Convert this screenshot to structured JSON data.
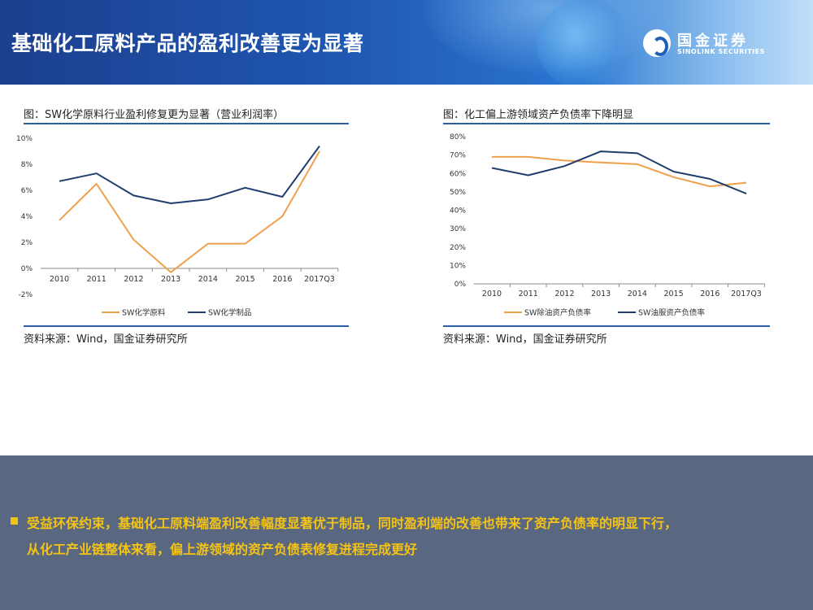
{
  "header": {
    "title": "基础化工原料产品的盈利改善更为显著",
    "logo_cn": "国金证券",
    "logo_en": "SINOLINK SECURITIES"
  },
  "left_panel": {
    "caption": "图：SW化学原料行业盈利修复更为显著（营业利润率）",
    "source": "资料来源：Wind，国金证券研究所"
  },
  "right_panel": {
    "caption": "图：化工偏上游领域资产负债率下降明显",
    "source": "资料来源：Wind，国金证券研究所"
  },
  "summary": {
    "line1": "受益环保约束，基础化工原料端盈利改善幅度显著优于制品，同时盈利端的改善也带来了资产负债率的明显下行，",
    "line2": "从化工产业链整体来看，偏上游领域的资产负债表修复进程完成更好"
  },
  "colors": {
    "orange": "#f0a04b",
    "navy": "#1f3d6e",
    "accent": "#2e5fa3",
    "bullet": "#f3c316"
  },
  "chart_data": [
    {
      "type": "line",
      "categories": [
        "2010",
        "2011",
        "2012",
        "2013",
        "2014",
        "2015",
        "2016",
        "2017Q3"
      ],
      "yticks": [
        "10%",
        "8%",
        "6%",
        "4%",
        "2%",
        "0%",
        "-2%"
      ],
      "ylim": [
        -2,
        10
      ],
      "series": [
        {
          "name": "SW化学原料",
          "color": "#f0a04b",
          "values": [
            3.7,
            6.5,
            2.2,
            -0.3,
            1.9,
            1.9,
            4.0,
            9.0
          ]
        },
        {
          "name": "SW化学制品",
          "color": "#1f3d6e",
          "values": [
            6.7,
            7.3,
            5.6,
            5.0,
            5.3,
            6.2,
            5.5,
            9.4
          ]
        }
      ]
    },
    {
      "type": "line",
      "categories": [
        "2010",
        "2011",
        "2012",
        "2013",
        "2014",
        "2015",
        "2016",
        "2017Q3"
      ],
      "yticks": [
        "80%",
        "70%",
        "60%",
        "50%",
        "40%",
        "30%",
        "20%",
        "10%",
        "0%"
      ],
      "ylim": [
        0,
        80
      ],
      "series": [
        {
          "name": "SW除油资产负债率",
          "color": "#f0a04b",
          "values": [
            69,
            69,
            67,
            66,
            65,
            58,
            53,
            55
          ]
        },
        {
          "name": "SW油服资产负债率",
          "color": "#1f3d6e",
          "values": [
            63,
            59,
            64,
            72,
            71,
            61,
            57,
            49
          ]
        }
      ]
    }
  ]
}
